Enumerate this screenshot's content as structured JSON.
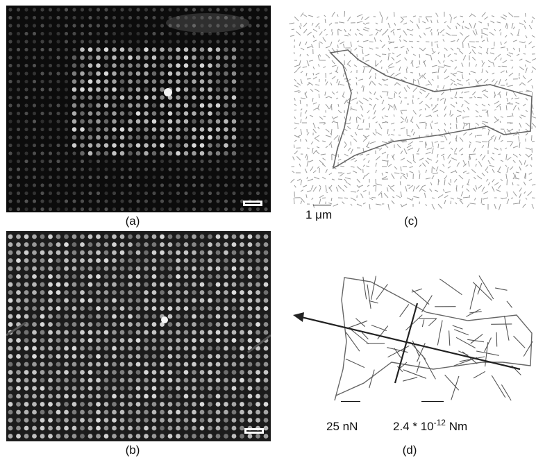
{
  "figure": {
    "panels": [
      {
        "id": "a",
        "label": "(a)"
      },
      {
        "id": "b",
        "label": "(b)"
      },
      {
        "id": "c",
        "label": "(c)"
      },
      {
        "id": "d",
        "label": "(d)"
      }
    ],
    "scale_bars": {
      "c_length": "1 μm",
      "d_force": "25 nN",
      "d_moment_base": "2.4 * 10",
      "d_moment_exp": "-12",
      "d_moment_unit": "Nm"
    },
    "colors": {
      "image_background_a": "#0c0c0c",
      "image_background_b": "#1c1c1c",
      "dots_a": "#5a5a5a",
      "dots_b": "#9a9a9a",
      "vector_gray": "#9a9a9a",
      "outline": "#666666",
      "main_arrow": "#222222"
    },
    "icons": {
      "scale_box_a": "scale-bar-icon",
      "scale_box_b": "scale-bar-icon"
    }
  }
}
